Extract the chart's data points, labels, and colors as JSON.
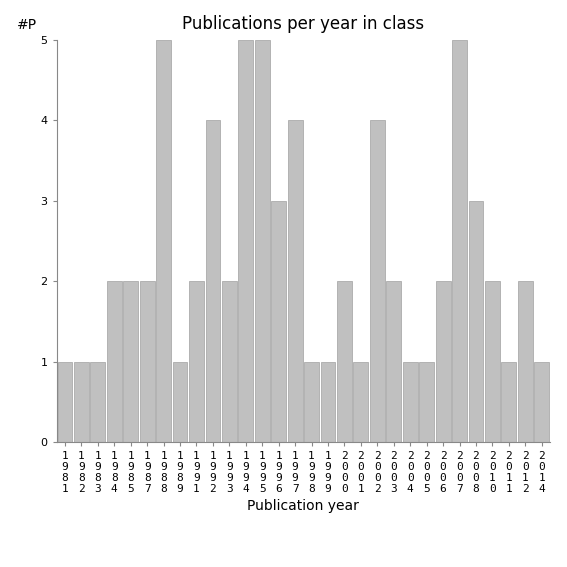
{
  "years": [
    "1981",
    "1982",
    "1983",
    "1984",
    "1985",
    "1987",
    "1988",
    "1989",
    "1991",
    "1992",
    "1993",
    "1994",
    "1995",
    "1996",
    "1997",
    "1998",
    "1999",
    "2000",
    "2001",
    "2002",
    "2003",
    "2004",
    "2005",
    "2006",
    "2007",
    "2008",
    "2010",
    "2011",
    "2012",
    "2014"
  ],
  "values": [
    1,
    1,
    1,
    2,
    2,
    2,
    5,
    1,
    2,
    4,
    2,
    5,
    5,
    3,
    4,
    1,
    1,
    2,
    1,
    4,
    2,
    1,
    1,
    2,
    5,
    3,
    2,
    1,
    2,
    1
  ],
  "bar_color": "#c0c0c0",
  "bar_edge_color": "#a0a0a0",
  "title": "Publications per year in class",
  "xlabel": "Publication year",
  "ylabel": "#P",
  "ylim": [
    0,
    5
  ],
  "yticks": [
    0,
    1,
    2,
    3,
    4,
    5
  ],
  "title_fontsize": 12,
  "label_fontsize": 10,
  "tick_fontsize": 8,
  "bg_color": "#ffffff"
}
